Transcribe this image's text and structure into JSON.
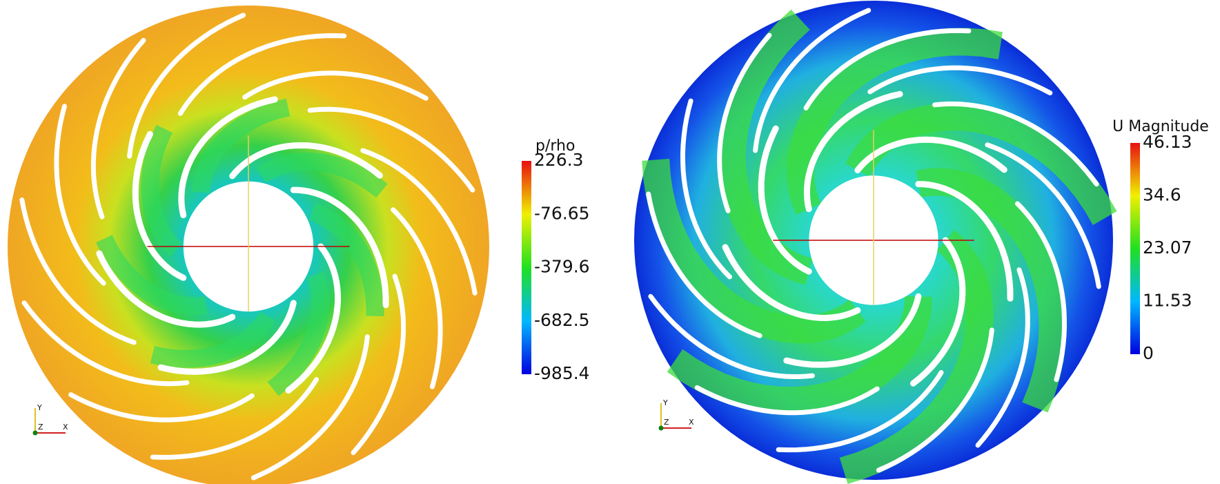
{
  "panels": [
    {
      "colorbar": {
        "title": "p/rho",
        "ticks": [
          "226.3",
          "-76.65",
          "-379.6",
          "-682.5",
          "-985.4"
        ]
      },
      "axes": {
        "y": "Y",
        "z": "Z",
        "x": "X"
      }
    },
    {
      "colorbar": {
        "title": "U Magnitude",
        "ticks": [
          "46.13",
          "34.6",
          "23.07",
          "11.53",
          "0"
        ]
      },
      "axes": {
        "y": "Y",
        "z": "Z",
        "x": "X"
      }
    }
  ]
}
